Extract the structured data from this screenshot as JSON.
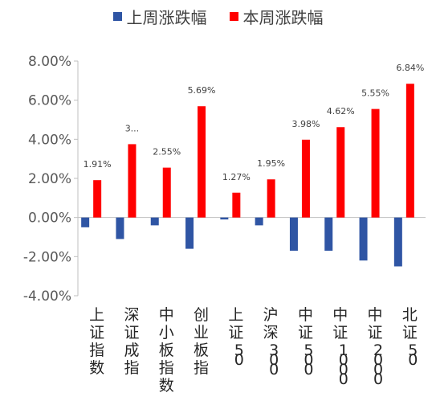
{
  "chart_data": {
    "type": "bar",
    "categories": [
      "上证指数",
      "深证成指",
      "中小板指数",
      "创业板指",
      "上证50",
      "沪深300",
      "中证500",
      "中证1000",
      "中证2000",
      "北证50"
    ],
    "series": [
      {
        "name": "上周涨跌幅",
        "color": "#2F55A4",
        "values": [
          -0.5,
          -1.1,
          -0.4,
          -1.6,
          -0.1,
          -0.4,
          -1.7,
          -1.7,
          -2.2,
          -2.5
        ],
        "labels": [
          "",
          "",
          "",
          "",
          "",
          "",
          "",
          "",
          "",
          ""
        ]
      },
      {
        "name": "本周涨跌幅",
        "color": "#FF0000",
        "values": [
          1.91,
          3.75,
          2.55,
          5.69,
          1.27,
          1.95,
          3.98,
          4.62,
          5.55,
          6.84
        ],
        "labels": [
          "1.91%",
          "3...",
          "2.55%",
          "5.69%",
          "1.27%",
          "1.95%",
          "3.98%",
          "4.62%",
          "5.55%",
          "6.84%"
        ]
      }
    ],
    "ylim": [
      -4,
      8
    ],
    "yticks": [
      -4,
      -2,
      0,
      2,
      4,
      6,
      8
    ],
    "ytick_labels": [
      "-4.00%",
      "-2.00%",
      "0.00%",
      "2.00%",
      "4.00%",
      "6.00%",
      "8.00%"
    ],
    "grid": false,
    "legend_position": "top"
  }
}
